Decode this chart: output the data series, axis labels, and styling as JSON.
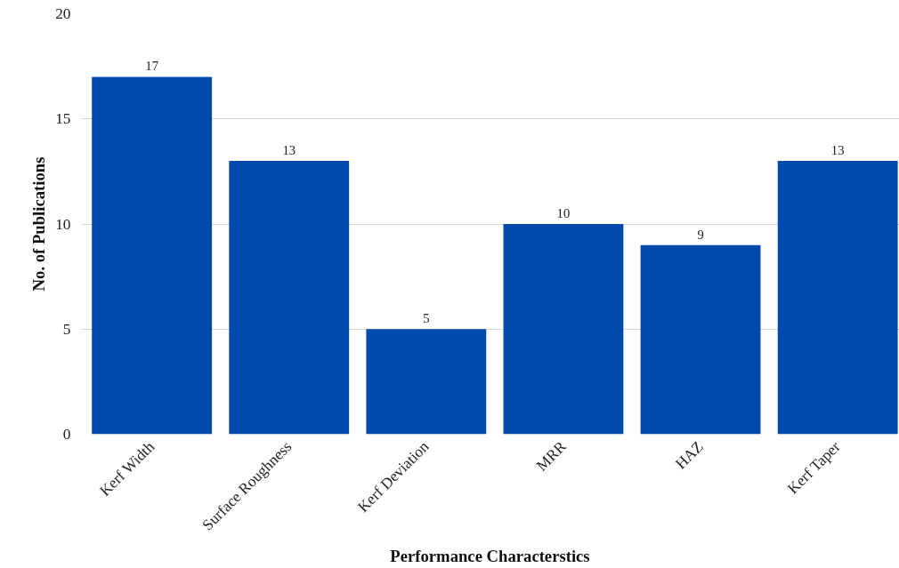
{
  "chart_data": {
    "type": "bar",
    "xlabel": "Performance Characterstics",
    "ylabel": "No. of Publications",
    "categories": [
      "Kerf Width",
      "Surface Roughness",
      "Kerf Deviation",
      "MRR",
      "HAZ",
      "Kerf Taper"
    ],
    "values": [
      17,
      13,
      5,
      10,
      9,
      13
    ],
    "color": "#004aad",
    "ylim": [
      0,
      20
    ],
    "yticks": [
      0,
      5,
      10,
      15,
      20
    ],
    "grid": "y",
    "data_labels": true
  }
}
